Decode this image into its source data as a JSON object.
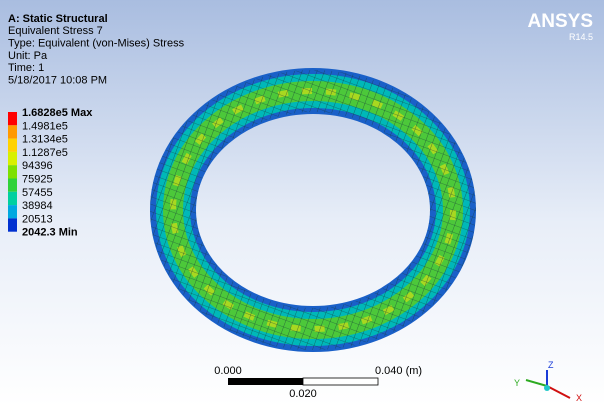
{
  "header": {
    "title": "A: Static Structural",
    "lines": [
      "Equivalent Stress 7",
      "Type: Equivalent (von-Mises) Stress",
      "Unit: Pa",
      "Time: 1",
      "5/18/2017 10:08 PM"
    ]
  },
  "legend": {
    "labels": [
      "1.6828e5 Max",
      "1.4981e5",
      "1.3134e5",
      "1.1287e5",
      "94396",
      "75925",
      "57455",
      "38984",
      "20513",
      "2042.3 Min"
    ],
    "colors": [
      "#ff0000",
      "#ff9900",
      "#ffd200",
      "#d8f000",
      "#7ee000",
      "#2ed23a",
      "#00d0a0",
      "#00a8e0",
      "#0030d0"
    ]
  },
  "logo": {
    "name": "ANSYS",
    "version": "R14.5"
  },
  "scale_bar": {
    "start": "0.000",
    "end": "0.040 (m)",
    "mid": "0.020"
  },
  "triad": {
    "axes": [
      "Y",
      "Z",
      "X"
    ]
  }
}
